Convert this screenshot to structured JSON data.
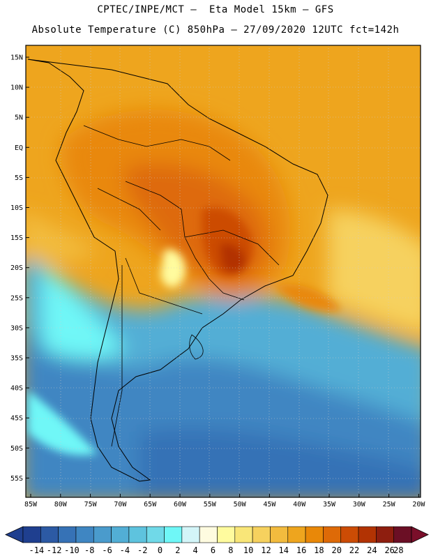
{
  "header": {
    "line1": "CPTEC/INPE/MCT –  Eta Model 15km – GFS",
    "line2": "Absolute Temperature (C) 850hPa – 27/09/2020 12UTC fct=142h"
  },
  "map": {
    "lat_labels": [
      "15N",
      "10N",
      "5N",
      "EQ",
      "5S",
      "10S",
      "15S",
      "20S",
      "25S",
      "30S",
      "35S",
      "40S",
      "45S",
      "50S",
      "55S"
    ],
    "lon_labels": [
      "85W",
      "80W",
      "75W",
      "70W",
      "65W",
      "60W",
      "55W",
      "50W",
      "45W",
      "40W",
      "35W",
      "30W",
      "25W",
      "20W"
    ]
  },
  "colorbar": {
    "labels": [
      "-14",
      "-12",
      "-10",
      "-8",
      "-6",
      "-4",
      "-2",
      "0",
      "2",
      "4",
      "6",
      "8",
      "10",
      "12",
      "14",
      "16",
      "18",
      "20",
      "22",
      "24",
      "26",
      "28"
    ],
    "colors": [
      "#1f3f8f",
      "#2c5aa4",
      "#3672b6",
      "#3f86c2",
      "#4a9bcc",
      "#52aed5",
      "#5ec3de",
      "#70d9e8",
      "#6ff7f7",
      "#d3f5f8",
      "#fefbe0",
      "#fffb9e",
      "#f9e678",
      "#f6d15e",
      "#f2bb3e",
      "#eea51e",
      "#e98808",
      "#de6a07",
      "#cc4c05",
      "#b23303",
      "#8e1e0f",
      "#6b0f25"
    ]
  }
}
